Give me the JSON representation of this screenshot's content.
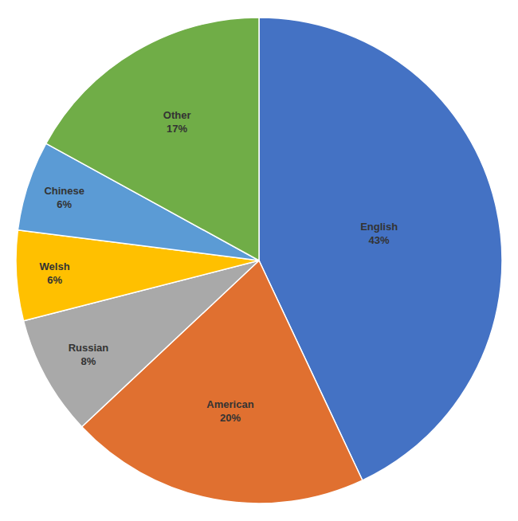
{
  "chart_data": {
    "type": "pie",
    "categories": [
      "English",
      "American",
      "Russian",
      "Welsh",
      "Chinese",
      "Other"
    ],
    "values": [
      43,
      20,
      8,
      6,
      6,
      17
    ],
    "value_labels": [
      "43%",
      "20%",
      "8%",
      "6%",
      "6%",
      "17%"
    ],
    "colors": [
      "#4472C4",
      "#E07030",
      "#A9A9A9",
      "#FFC000",
      "#5B9BD5",
      "#70AD47"
    ],
    "data_labels": true
  }
}
